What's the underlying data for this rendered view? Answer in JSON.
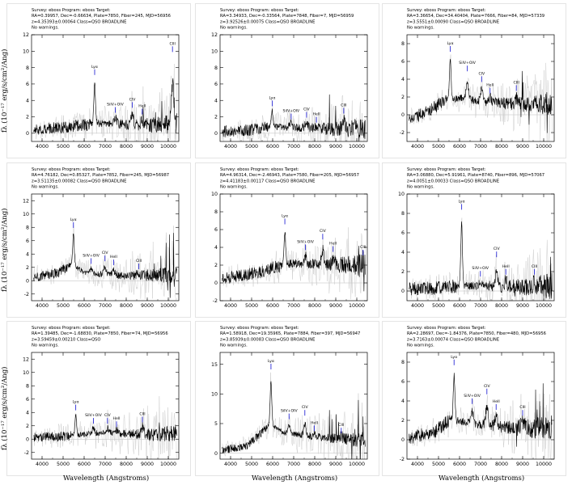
{
  "chart_data": [
    {
      "type": "line",
      "header": [
        "Survey: eboss Program: eboss Target:",
        "RA=0.39957, Dec=-0.66634, Plate=7850, Fiber=245, MJD=56956",
        "z=4.35393±0.00064 Class=QSO BROADLINE",
        "No warnings."
      ],
      "xlim": [
        3500,
        10500
      ],
      "ylim": [
        -1,
        12
      ],
      "xticks": [
        4000,
        5000,
        6000,
        7000,
        8000,
        9000,
        10000
      ],
      "yticks": [
        0,
        2,
        4,
        6,
        8,
        10,
        12
      ],
      "continuum": [
        [
          3600,
          0.5
        ],
        [
          5000,
          0.7
        ],
        [
          6300,
          1.1
        ],
        [
          6700,
          1.2
        ],
        [
          8000,
          1.1
        ],
        [
          9000,
          1.0
        ],
        [
          10300,
          1.2
        ]
      ],
      "lines": [
        {
          "label": "Lyα",
          "x": 6500,
          "peak": 7.0
        },
        {
          "label": "SiIV+OIV",
          "x": 7480,
          "peak": 2.4
        },
        {
          "label": "CIV",
          "x": 8290,
          "peak": 3.0
        },
        {
          "label": "HeII",
          "x": 8760,
          "peak": 2.2
        },
        {
          "label": "CIII",
          "x": 10200,
          "peak": 9.8
        }
      ]
    },
    {
      "type": "line",
      "header": [
        "Survey: eboss Program: eboss Target:",
        "RA=3.34933, Dec=-0.33564, Plate=7848, Fiber=7, MJD=56959",
        "z=3.92526±0.00075 Class=QSO BROADLINE",
        "No warnings."
      ],
      "xlim": [
        3500,
        10500
      ],
      "ylim": [
        -1,
        12
      ],
      "xticks": [
        4000,
        5000,
        6000,
        7000,
        8000,
        9000,
        10000
      ],
      "yticks": [
        0,
        2,
        4,
        6,
        8,
        10,
        12
      ],
      "continuum": [
        [
          3600,
          0.2
        ],
        [
          5000,
          0.4
        ],
        [
          5900,
          0.8
        ],
        [
          6500,
          0.8
        ],
        [
          8000,
          0.6
        ],
        [
          9000,
          0.5
        ],
        [
          10300,
          0.6
        ]
      ],
      "lines": [
        {
          "label": "Lyα",
          "x": 5980,
          "peak": 3.2
        },
        {
          "label": "SiIV+OIV",
          "x": 6880,
          "peak": 1.6
        },
        {
          "label": "CIV",
          "x": 7610,
          "peak": 1.8
        },
        {
          "label": "HeII",
          "x": 8080,
          "peak": 1.2
        },
        {
          "label": "CIII",
          "x": 9380,
          "peak": 2.3
        }
      ]
    },
    {
      "type": "line",
      "header": [
        "Survey: eboss Program: eboss Target:",
        "RA=3.36654, Dec=34.40404, Plate=7666, Fiber=84, MJD=57339",
        "z=3.5551±0.00090 Class=QSO BROADLINE",
        "No warnings."
      ],
      "xlim": [
        3500,
        10500
      ],
      "ylim": [
        -3,
        9
      ],
      "xticks": [
        4000,
        5000,
        6000,
        7000,
        8000,
        9000,
        10000
      ],
      "yticks": [
        -2,
        0,
        2,
        4,
        6,
        8
      ],
      "continuum": [
        [
          3600,
          -0.5
        ],
        [
          4500,
          0.4
        ],
        [
          5300,
          1.6
        ],
        [
          6000,
          1.9
        ],
        [
          7000,
          1.5
        ],
        [
          8000,
          1.3
        ],
        [
          9000,
          1.2
        ],
        [
          10300,
          1.3
        ]
      ],
      "lines": [
        {
          "label": "Lyα",
          "x": 5560,
          "peak": 7.0
        },
        {
          "label": "SiIV+OIV",
          "x": 6370,
          "peak": 4.8
        },
        {
          "label": "CIV",
          "x": 7050,
          "peak": 3.6
        },
        {
          "label": "HeII",
          "x": 7450,
          "peak": 2.3
        },
        {
          "label": "CIII",
          "x": 8700,
          "peak": 2.6
        }
      ]
    },
    {
      "type": "line",
      "header": [
        "Survey: eboss Program: eboss Target:",
        "RA=4.76182, Dec=0.85327, Plate=7852, Fiber=245, MJD=56987",
        "z=3.51135±0.00082 Class=QSO BROADLINE",
        "No warnings."
      ],
      "xlim": [
        3500,
        10500
      ],
      "ylim": [
        -3,
        13
      ],
      "xticks": [
        4000,
        5000,
        6000,
        7000,
        8000,
        9000,
        10000
      ],
      "yticks": [
        -2,
        0,
        2,
        4,
        6,
        8,
        10,
        12
      ],
      "continuum": [
        [
          3600,
          0.5
        ],
        [
          4800,
          1.2
        ],
        [
          5400,
          2.5
        ],
        [
          6000,
          1.3
        ],
        [
          7000,
          0.9
        ],
        [
          8000,
          0.8
        ],
        [
          9000,
          0.8
        ],
        [
          10300,
          0.9
        ]
      ],
      "lines": [
        {
          "label": "Lyα",
          "x": 5490,
          "peak": 7.8
        },
        {
          "label": "SiIV+OIV",
          "x": 6330,
          "peak": 2.4
        },
        {
          "label": "CIV",
          "x": 6990,
          "peak": 2.8
        },
        {
          "label": "HeII",
          "x": 7400,
          "peak": 2.2
        },
        {
          "label": "CIII",
          "x": 8600,
          "peak": 1.6
        }
      ]
    },
    {
      "type": "line",
      "header": [
        "Survey: eboss Program: eboss Target:",
        "RA=4.96314, Dec=-2.46943, Plate=7580, Fiber=205, MJD=56957",
        "z=4.41183±0.00117 Class=QSO BROADLINE",
        "No warnings."
      ],
      "xlim": [
        3500,
        10500
      ],
      "ylim": [
        -2,
        10
      ],
      "xticks": [
        4000,
        5000,
        6000,
        7000,
        8000,
        9000,
        10000
      ],
      "yticks": [
        -2,
        0,
        2,
        4,
        6,
        8,
        10
      ],
      "continuum": [
        [
          3600,
          0.5
        ],
        [
          5000,
          1.0
        ],
        [
          6200,
          1.8
        ],
        [
          6900,
          2.2
        ],
        [
          8000,
          2.1
        ],
        [
          9000,
          2.0
        ],
        [
          10300,
          1.9
        ]
      ],
      "lines": [
        {
          "label": "Lyα",
          "x": 6580,
          "peak": 6.5
        },
        {
          "label": "SiIV+OIV",
          "x": 7560,
          "peak": 3.6
        },
        {
          "label": "CIV",
          "x": 8380,
          "peak": 4.8
        },
        {
          "label": "HeII",
          "x": 8870,
          "peak": 3.4
        },
        {
          "label": "CIII",
          "x": 10300,
          "peak": 3.0
        }
      ]
    },
    {
      "type": "line",
      "header": [
        "Survey: eboss Program: eboss Target:",
        "RA=3.06880, Dec=5.91961, Plate=8740, Fiber=896, MJD=57067",
        "z=4.0051±0.00033 Class=QSO BROADLINE",
        "No warnings."
      ],
      "xlim": [
        3500,
        10500
      ],
      "ylim": [
        -1,
        10
      ],
      "xticks": [
        4000,
        5000,
        6000,
        7000,
        8000,
        9000,
        10000
      ],
      "yticks": [
        0,
        2,
        4,
        6,
        8,
        10
      ],
      "continuum": [
        [
          3600,
          0.2
        ],
        [
          5000,
          0.3
        ],
        [
          6000,
          0.6
        ],
        [
          7000,
          0.5
        ],
        [
          8000,
          0.5
        ],
        [
          9000,
          0.4
        ],
        [
          10300,
          0.5
        ]
      ],
      "lines": [
        {
          "label": "Lyα",
          "x": 6100,
          "peak": 8.3
        },
        {
          "label": "SiIV+OIV",
          "x": 6990,
          "peak": 1.4
        },
        {
          "label": "CIV",
          "x": 7760,
          "peak": 3.4
        },
        {
          "label": "HeII",
          "x": 8200,
          "peak": 1.6
        },
        {
          "label": "CIII",
          "x": 9560,
          "peak": 1.6
        }
      ]
    },
    {
      "type": "line",
      "header": [
        "Survey: eboss Program: eboss Target:",
        "RA=1.39485, Dec=-1.68830, Plate=7850, Fiber=74, MJD=56956",
        "z=3.59459±0.00210 Class=QSO",
        "No warnings."
      ],
      "xlim": [
        3500,
        10500
      ],
      "ylim": [
        -3,
        13
      ],
      "xticks": [
        4000,
        5000,
        6000,
        7000,
        8000,
        9000,
        10000
      ],
      "yticks": [
        -2,
        0,
        2,
        4,
        6,
        8,
        10,
        12
      ],
      "continuum": [
        [
          3600,
          0.3
        ],
        [
          5000,
          0.4
        ],
        [
          5700,
          0.6
        ],
        [
          6500,
          0.9
        ],
        [
          8000,
          0.8
        ],
        [
          9000,
          0.7
        ],
        [
          10300,
          0.8
        ]
      ],
      "lines": [
        {
          "label": "Lyα",
          "x": 5600,
          "peak": 4.2
        },
        {
          "label": "SiIV+OIV",
          "x": 6440,
          "peak": 2.2
        },
        {
          "label": "CIV",
          "x": 7110,
          "peak": 2.2
        },
        {
          "label": "HeII",
          "x": 7540,
          "peak": 1.7
        },
        {
          "label": "CIII",
          "x": 8770,
          "peak": 2.4
        }
      ]
    },
    {
      "type": "line",
      "header": [
        "Survey: eboss Program: eboss Target:",
        "RA=1.58918, Dec=19.35965, Plate=7884, Fiber=397, MJD=56947",
        "z=3.85939±0.00083 Class=QSO BROADLINE",
        "No warnings."
      ],
      "xlim": [
        3500,
        10500
      ],
      "ylim": [
        -1,
        17
      ],
      "xticks": [
        4000,
        5000,
        6000,
        7000,
        8000,
        9000,
        10000
      ],
      "yticks": [
        0,
        5,
        10,
        15
      ],
      "continuum": [
        [
          3600,
          0.5
        ],
        [
          4800,
          1.2
        ],
        [
          5500,
          3.5
        ],
        [
          5900,
          5.0
        ],
        [
          6500,
          3.5
        ],
        [
          7500,
          3.0
        ],
        [
          8500,
          2.6
        ],
        [
          10300,
          2.2
        ]
      ],
      "lines": [
        {
          "label": "Lyα",
          "x": 5920,
          "peak": 14.0
        },
        {
          "label": "SiIV+OIV",
          "x": 6780,
          "peak": 5.6
        },
        {
          "label": "CIV",
          "x": 7530,
          "peak": 6.2
        },
        {
          "label": "HeII",
          "x": 7980,
          "peak": 3.6
        },
        {
          "label": "CIII",
          "x": 9260,
          "peak": 3.2
        }
      ]
    },
    {
      "type": "line",
      "header": [
        "Survey: eboss Program: eboss Target:",
        "RA=2.28697, Dec=-1.84376, Plate=7850, Fiber=480, MJD=56956",
        "z=3.7163±0.00074 Class=QSO BROADLINE",
        "No warnings."
      ],
      "xlim": [
        3500,
        10500
      ],
      "ylim": [
        -2,
        9
      ],
      "xticks": [
        4000,
        5000,
        6000,
        7000,
        8000,
        9000,
        10000
      ],
      "yticks": [
        -2,
        0,
        2,
        4,
        6,
        8
      ],
      "continuum": [
        [
          3600,
          0.2
        ],
        [
          4800,
          0.8
        ],
        [
          5600,
          2.2
        ],
        [
          6200,
          1.8
        ],
        [
          7000,
          1.6
        ],
        [
          8000,
          1.3
        ],
        [
          9000,
          1.2
        ],
        [
          10300,
          1.2
        ]
      ],
      "lines": [
        {
          "label": "Lyα",
          "x": 5740,
          "peak": 7.6
        },
        {
          "label": "SiIV+OIV",
          "x": 6600,
          "peak": 3.6
        },
        {
          "label": "CIV",
          "x": 7300,
          "peak": 4.6
        },
        {
          "label": "HeII",
          "x": 7740,
          "peak": 3.0
        },
        {
          "label": "CIII",
          "x": 9000,
          "peak": 2.4
        }
      ]
    }
  ],
  "axes": {
    "ylabel": "fλ (10⁻¹⁷ erg/s/cm²/Ang)",
    "xlabel": "Wavelength (Angstroms)"
  }
}
